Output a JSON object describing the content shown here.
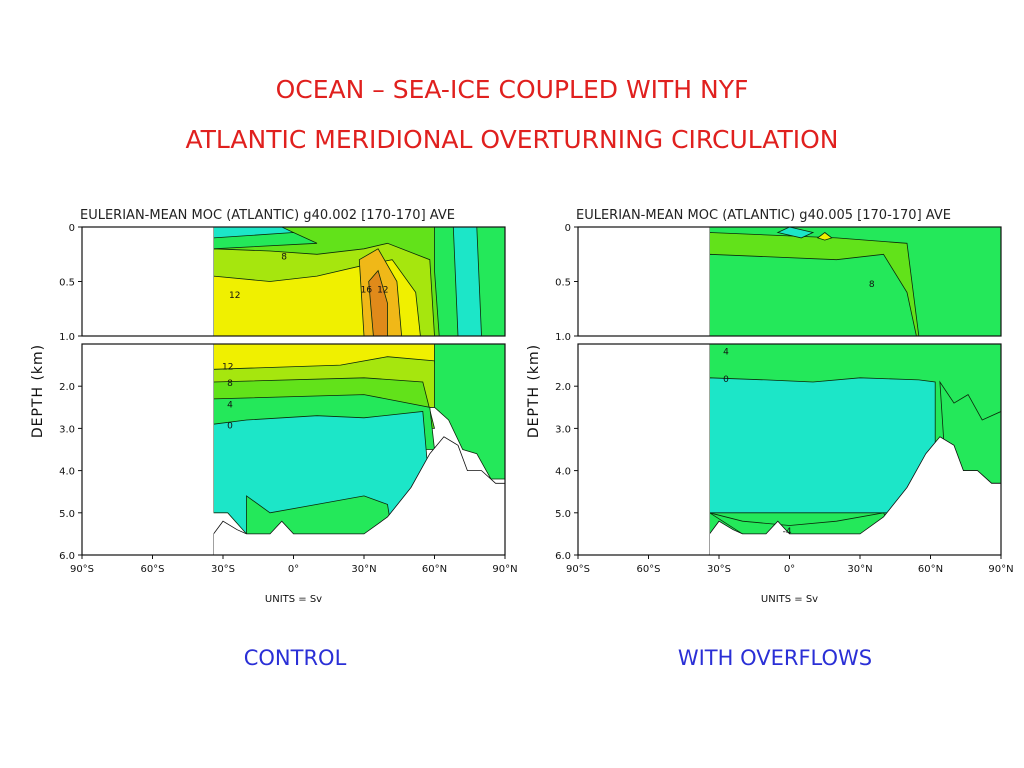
{
  "title_line1": "OCEAN – SEA-ICE COUPLED WITH NYF",
  "title_line2": "ATLANTIC MERIDIONAL OVERTURNING CIRCULATION",
  "colors": {
    "title": "#e0201e",
    "caption": "#2a2fd6",
    "fill_levels": [
      "#1ce6c8",
      "#24e85a",
      "#62e21a",
      "#a6e60e",
      "#f0f000",
      "#f0b818",
      "#e08a1a"
    ]
  },
  "chart_data": [
    {
      "type": "contour",
      "header": "EULERIAN-MEAN MOC (ATLANTIC) g40.002 [170-170] AVE",
      "caption": "CONTROL",
      "ylabel": "DEPTH (km)",
      "units": "UNITS = Sv",
      "x_ticks": [
        "90°S",
        "60°S",
        "30°S",
        "0°",
        "30°N",
        "60°N",
        "90°N"
      ],
      "y_ticks_upper": [
        "0",
        "0.5",
        "1.0"
      ],
      "y_ticks_lower": [
        "2.0",
        "3.0",
        "4.0",
        "5.0",
        "6.0"
      ],
      "xlim": [
        -90,
        90
      ],
      "ylim_upper": [
        0,
        1
      ],
      "ylim_lower": [
        1,
        6
      ],
      "contour_labels": [
        {
          "text": "8",
          "lat": -4,
          "depth": 0.3
        },
        {
          "text": "12",
          "lat": -25,
          "depth": 0.65
        },
        {
          "text": "16",
          "lat": 31,
          "depth": 0.6
        },
        {
          "text": "12",
          "lat": 38,
          "depth": 0.6
        },
        {
          "text": "12",
          "lat": -28,
          "depth": 1.6
        },
        {
          "text": "8",
          "lat": -27,
          "depth": 2.0
        },
        {
          "text": "4",
          "lat": -27,
          "depth": 2.5
        },
        {
          "text": "0",
          "lat": -27,
          "depth": 3.0
        }
      ]
    },
    {
      "type": "contour",
      "header": "EULERIAN-MEAN MOC (ATLANTIC) g40.005 [170-170] AVE",
      "caption": "WITH OVERFLOWS",
      "ylabel": "DEPTH (km)",
      "units": "UNITS = Sv",
      "x_ticks": [
        "90°S",
        "60°S",
        "30°S",
        "0°",
        "30°N",
        "60°N",
        "90°N"
      ],
      "y_ticks_upper": [
        "0",
        "0.5",
        "1.0"
      ],
      "y_ticks_lower": [
        "2.0",
        "3.0",
        "4.0",
        "5.0",
        "6.0"
      ],
      "xlim": [
        -90,
        90
      ],
      "ylim_upper": [
        0,
        1
      ],
      "ylim_lower": [
        1,
        6
      ],
      "contour_labels": [
        {
          "text": "8",
          "lat": 35,
          "depth": 0.55
        },
        {
          "text": "4",
          "lat": -27,
          "depth": 1.25
        },
        {
          "text": "0",
          "lat": -27,
          "depth": 1.9
        },
        {
          "text": "-4",
          "lat": -1,
          "depth": 5.5
        }
      ]
    }
  ]
}
